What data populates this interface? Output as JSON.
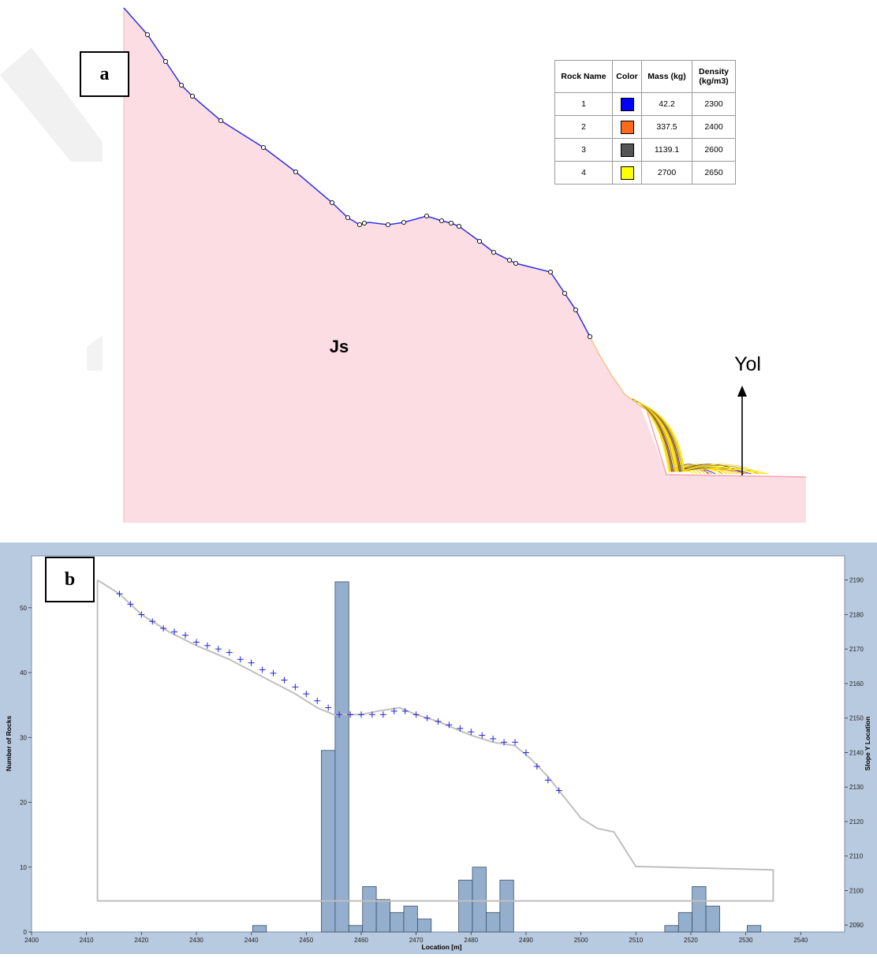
{
  "panel_a": {
    "label": "a",
    "formation_label": "Js",
    "road_label": "Yol",
    "legend": {
      "headers": [
        "Rock Name",
        "Color",
        "Mass (kg)",
        "Density (kg/m3)"
      ],
      "rows": [
        {
          "name": "1",
          "color": "#0000ff",
          "mass": "42.2",
          "density": "2300"
        },
        {
          "name": "2",
          "color": "#ff6a1a",
          "mass": "337.5",
          "density": "2400"
        },
        {
          "name": "3",
          "color": "#555555",
          "mass": "1139.1",
          "density": "2600"
        },
        {
          "name": "4",
          "color": "#ffff00",
          "mass": "2700",
          "density": "2650"
        }
      ]
    },
    "colors": {
      "slope_fill": "#fcdde3",
      "slope_line": "#2b2ff0",
      "trajectory": "#ffee00"
    }
  },
  "panel_b": {
    "label": "b",
    "colors": {
      "frame": "#b8cadf",
      "bar_fill": "#94aecd",
      "bar_stroke": "#3b4e66",
      "profile": "#bfbfbf",
      "markers": "#2222dd"
    }
  },
  "chart_data": {
    "type": "bar",
    "xlabel": "Location [m]",
    "ylabel": "Number of Rocks",
    "y2label": "Slope Y Location",
    "xlim": [
      2400,
      2548
    ],
    "ylim": [
      0,
      58
    ],
    "y2lim": [
      2088,
      2197
    ],
    "xticks": [
      2400,
      2410,
      2420,
      2430,
      2440,
      2450,
      2460,
      2470,
      2480,
      2490,
      2500,
      2510,
      2520,
      2530,
      2540
    ],
    "yticks": [
      0,
      10,
      20,
      30,
      40,
      50
    ],
    "y2ticks": [
      2090,
      2100,
      2110,
      2120,
      2130,
      2140,
      2150,
      2160,
      2170,
      2180,
      2190
    ],
    "bin_width": 2.5,
    "bars": [
      {
        "x": 2441.5,
        "count": 1
      },
      {
        "x": 2454.0,
        "count": 28
      },
      {
        "x": 2456.5,
        "count": 54
      },
      {
        "x": 2459.0,
        "count": 1
      },
      {
        "x": 2461.5,
        "count": 7
      },
      {
        "x": 2464.0,
        "count": 5
      },
      {
        "x": 2466.5,
        "count": 3
      },
      {
        "x": 2469.0,
        "count": 4
      },
      {
        "x": 2471.5,
        "count": 2
      },
      {
        "x": 2479.0,
        "count": 8
      },
      {
        "x": 2481.5,
        "count": 10
      },
      {
        "x": 2484.0,
        "count": 3
      },
      {
        "x": 2486.5,
        "count": 8
      },
      {
        "x": 2516.5,
        "count": 1
      },
      {
        "x": 2519.0,
        "count": 3
      },
      {
        "x": 2521.5,
        "count": 7
      },
      {
        "x": 2524.0,
        "count": 4
      },
      {
        "x": 2531.5,
        "count": 1
      }
    ],
    "slope_profile": {
      "x": [
        2412,
        2416,
        2420,
        2425,
        2430,
        2436,
        2442,
        2448,
        2452,
        2455,
        2460,
        2463,
        2467,
        2470,
        2474,
        2480,
        2484,
        2488,
        2491,
        2494,
        2497,
        2500,
        2503,
        2506,
        2510,
        2535
      ],
      "y": [
        2190,
        2186,
        2180,
        2175,
        2171,
        2167,
        2162,
        2157,
        2153,
        2151,
        2151,
        2152,
        2153,
        2151,
        2149,
        2145,
        2143,
        2142,
        2138,
        2133,
        2127,
        2121,
        2118,
        2117,
        2107,
        2106
      ]
    },
    "impact_points": {
      "x": [
        2416,
        2418,
        2420,
        2422,
        2424,
        2426,
        2428,
        2430,
        2432,
        2434,
        2436,
        2438,
        2440,
        2442,
        2444,
        2446,
        2448,
        2450,
        2452,
        2454,
        2456,
        2458,
        2460,
        2462,
        2464,
        2466,
        2468,
        2470,
        2472,
        2474,
        2476,
        2478,
        2480,
        2482,
        2484,
        2486,
        2488,
        2490,
        2492,
        2494,
        2496
      ],
      "y": [
        2186,
        2183,
        2180,
        2178,
        2176,
        2175,
        2174,
        2172,
        2171,
        2170,
        2169,
        2167,
        2166,
        2164,
        2163,
        2161,
        2159,
        2157,
        2155,
        2153,
        2151,
        2151,
        2151,
        2151,
        2151,
        2152,
        2152,
        2151,
        2150,
        2149,
        2148,
        2147,
        2146,
        2145,
        2144,
        2143,
        2143,
        2140,
        2136,
        2132,
        2129
      ]
    }
  }
}
